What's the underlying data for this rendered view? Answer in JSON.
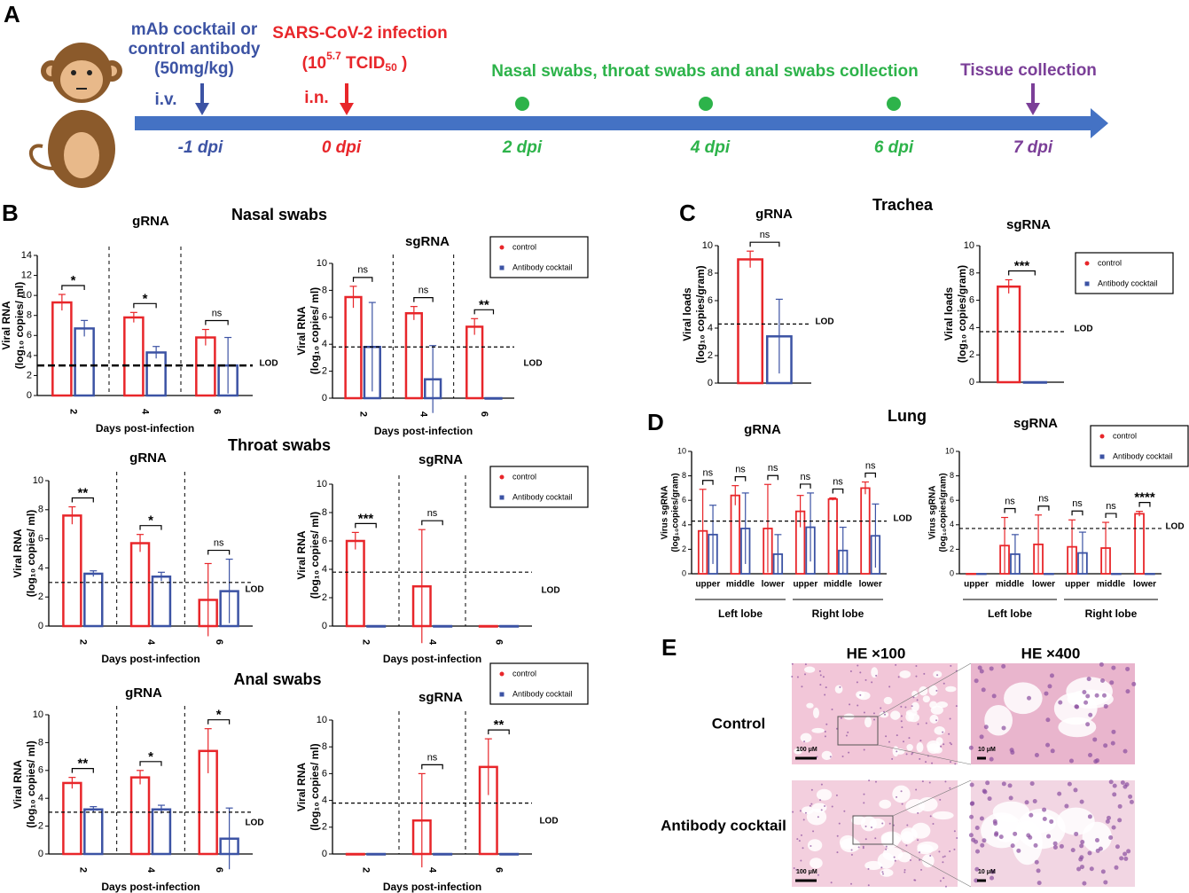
{
  "panel_labels": [
    "A",
    "B",
    "C",
    "D",
    "E"
  ],
  "timeline": {
    "treatment": [
      "mAb cocktail or",
      "control antibody",
      "(50mg/kg)"
    ],
    "route_iv": "i.v.",
    "infection": "SARS-CoV-2 infection",
    "dose": [
      "(10",
      "5.7",
      " TCID",
      "50",
      " )"
    ],
    "route_in": "i.n.",
    "sampling": "Nasal swabs, throat swabs and anal swabs collection",
    "tissue": "Tissue collection",
    "days": [
      "-1 dpi",
      "0 dpi",
      "2 dpi",
      "4 dpi",
      "6 dpi",
      "7 dpi"
    ]
  },
  "chart_data": [
    {
      "type": "bar",
      "group_title": "Nasal swabs",
      "title": "gRNA",
      "categories": [
        "2",
        "4",
        "6"
      ],
      "series": [
        {
          "name": "control",
          "color": "#e8262a",
          "values": [
            9.3,
            7.8,
            5.8
          ],
          "errors": [
            0.8,
            0.5,
            0.8
          ]
        },
        {
          "name": "Antibody cocktail",
          "color": "#3c53a4",
          "values": [
            6.7,
            4.3,
            3.0
          ],
          "errors": [
            0.8,
            0.6,
            2.8
          ]
        }
      ],
      "ylim": [
        0,
        14
      ],
      "yticks": [
        0,
        2,
        4,
        6,
        8,
        10,
        12,
        14
      ],
      "ylabel": [
        "Viral RNA",
        "(log₁₀ copies/ ml)"
      ],
      "xlabel": "Days post-infection",
      "significance": [
        "*",
        "*",
        "ns"
      ],
      "lod": 3.0,
      "lod_label": "LOD"
    },
    {
      "type": "bar",
      "title": "sgRNA",
      "categories": [
        "2",
        "4",
        "6"
      ],
      "series": [
        {
          "name": "control",
          "color": "#e8262a",
          "values": [
            7.5,
            6.3,
            5.3
          ],
          "errors": [
            0.8,
            0.5,
            0.6
          ]
        },
        {
          "name": "Antibody cocktail",
          "color": "#3c53a4",
          "values": [
            3.8,
            1.4,
            0
          ],
          "errors": [
            3.3,
            2.5,
            0
          ]
        }
      ],
      "ylim": [
        0,
        10
      ],
      "yticks": [
        0,
        2,
        4,
        6,
        8,
        10
      ],
      "ylabel": [
        "Viral RNA",
        "(log₁₀ copies/ ml)"
      ],
      "xlabel": "Days post-infection",
      "significance": [
        "ns",
        "ns",
        "**"
      ],
      "lod": 3.8,
      "lod_label": "LOD",
      "legend": true
    },
    {
      "type": "bar",
      "group_title": "Throat swabs",
      "title": "gRNA",
      "categories": [
        "2",
        "4",
        "6"
      ],
      "series": [
        {
          "name": "control",
          "color": "#e8262a",
          "values": [
            7.6,
            5.7,
            1.8
          ],
          "errors": [
            0.6,
            0.6,
            2.5
          ]
        },
        {
          "name": "Antibody cocktail",
          "color": "#3c53a4",
          "values": [
            3.6,
            3.4,
            2.4
          ],
          "errors": [
            0.2,
            0.3,
            2.2
          ]
        }
      ],
      "ylim": [
        0,
        10
      ],
      "yticks": [
        0,
        2,
        4,
        6,
        8,
        10
      ],
      "ylabel": [
        "Viral RNA",
        "(log₁₀ copies/ ml)"
      ],
      "xlabel": "Days post-infection",
      "significance": [
        "**",
        "*",
        "ns"
      ],
      "lod": 3.0,
      "lod_label": "LOD"
    },
    {
      "type": "bar",
      "title": "sgRNA",
      "categories": [
        "2",
        "4",
        "6"
      ],
      "series": [
        {
          "name": "control",
          "color": "#e8262a",
          "values": [
            6.0,
            2.8,
            0
          ],
          "errors": [
            0.6,
            4.0,
            0
          ]
        },
        {
          "name": "Antibody cocktail",
          "color": "#3c53a4",
          "values": [
            0,
            0,
            0
          ],
          "errors": [
            0,
            0,
            0
          ]
        }
      ],
      "ylim": [
        0,
        10
      ],
      "yticks": [
        0,
        2,
        4,
        6,
        8,
        10
      ],
      "ylabel": [
        "Viral RNA",
        "(log₁₀ copies/ ml)"
      ],
      "xlabel": "Days post-infection",
      "significance": [
        "***",
        "ns",
        null
      ],
      "lod": 3.8,
      "lod_label": "LOD",
      "legend": true
    },
    {
      "type": "bar",
      "group_title": "Anal swabs",
      "title": "gRNA",
      "categories": [
        "2",
        "4",
        "6"
      ],
      "series": [
        {
          "name": "control",
          "color": "#e8262a",
          "values": [
            5.1,
            5.5,
            7.4
          ],
          "errors": [
            0.4,
            0.5,
            1.6
          ]
        },
        {
          "name": "Antibody cocktail",
          "color": "#3c53a4",
          "values": [
            3.2,
            3.2,
            1.1
          ],
          "errors": [
            0.2,
            0.3,
            2.2
          ]
        }
      ],
      "ylim": [
        0,
        10
      ],
      "yticks": [
        0,
        2,
        4,
        6,
        8,
        10
      ],
      "ylabel": [
        "Viral RNA",
        "(log₁₀ copies/ ml)"
      ],
      "xlabel": "Days post-infection",
      "significance": [
        "**",
        "*",
        "*"
      ],
      "lod": 3.0,
      "lod_label": "LOD"
    },
    {
      "type": "bar",
      "title": "sgRNA",
      "categories": [
        "2",
        "4",
        "6"
      ],
      "series": [
        {
          "name": "control",
          "color": "#e8262a",
          "values": [
            0,
            2.5,
            6.5
          ],
          "errors": [
            0,
            3.5,
            2.1
          ]
        },
        {
          "name": "Antibody cocktail",
          "color": "#3c53a4",
          "values": [
            0,
            0,
            0
          ],
          "errors": [
            0,
            0,
            0
          ]
        }
      ],
      "ylim": [
        0,
        10
      ],
      "yticks": [
        0,
        2,
        4,
        6,
        8,
        10
      ],
      "ylabel": [
        "Viral RNA",
        "(log₁₀ copies/ ml)"
      ],
      "xlabel": "Days post-infection",
      "significance": [
        null,
        "ns",
        "**"
      ],
      "lod": 3.8,
      "lod_label": "LOD",
      "legend": true
    },
    {
      "type": "bar",
      "group_title": "Trachea",
      "title": "gRNA",
      "categories": [
        null
      ],
      "series": [
        {
          "name": "control",
          "color": "#e8262a",
          "values": [
            9.0
          ],
          "errors": [
            0.6
          ]
        },
        {
          "name": "Antibody cocktail",
          "color": "#3c53a4",
          "values": [
            3.4
          ],
          "errors": [
            2.7
          ]
        }
      ],
      "ylim": [
        0,
        10
      ],
      "yticks": [
        0,
        2,
        4,
        6,
        8,
        10
      ],
      "ylabel": [
        "Viral loads",
        "(log₁₀ copies/gram)"
      ],
      "significance": [
        "ns"
      ],
      "lod": 4.3,
      "lod_label": "LOD"
    },
    {
      "type": "bar",
      "title": "sgRNA",
      "categories": [
        null
      ],
      "series": [
        {
          "name": "control",
          "color": "#e8262a",
          "values": [
            7.0
          ],
          "errors": [
            0.5
          ]
        },
        {
          "name": "Antibody cocktail",
          "color": "#3c53a4",
          "values": [
            0
          ],
          "errors": [
            0
          ]
        }
      ],
      "ylim": [
        0,
        10
      ],
      "yticks": [
        0,
        2,
        4,
        6,
        8,
        10
      ],
      "ylabel": [
        "Viral loads",
        "(log₁₀ copies/gram)"
      ],
      "significance": [
        "***"
      ],
      "lod": 3.7,
      "lod_label": "LOD",
      "legend": true
    },
    {
      "type": "bar",
      "group_title": "Lung",
      "title": "gRNA",
      "categories": [
        "upper",
        "middle",
        "lower",
        "upper",
        "middle",
        "lower"
      ],
      "groups": [
        "Left lobe",
        "Right lobe"
      ],
      "series": [
        {
          "name": "control",
          "color": "#e8262a",
          "values": [
            3.5,
            6.4,
            3.7,
            5.1,
            6.1,
            7.0
          ],
          "errors": [
            3.4,
            0.8,
            3.6,
            1.3,
            0.1,
            0.5
          ]
        },
        {
          "name": "Antibody cocktail",
          "color": "#3c53a4",
          "values": [
            3.2,
            3.7,
            1.6,
            3.8,
            1.9,
            3.1
          ],
          "errors": [
            2.4,
            2.9,
            1.6,
            2.8,
            1.9,
            2.6
          ]
        }
      ],
      "ylim": [
        0,
        10
      ],
      "yticks": [
        0,
        2,
        4,
        6,
        8,
        10
      ],
      "ylabel": [
        "Virus sgRNA",
        "(log₁₀copies/gram)"
      ],
      "significance": [
        "ns",
        "ns",
        "ns",
        "ns",
        "ns",
        "ns"
      ],
      "lod": 4.3,
      "lod_label": "LOD"
    },
    {
      "type": "bar",
      "title": "sgRNA",
      "categories": [
        "upper",
        "middle",
        "lower",
        "upper",
        "middle",
        "lower"
      ],
      "groups": [
        "Left lobe",
        "Right lobe"
      ],
      "series": [
        {
          "name": "control",
          "color": "#e8262a",
          "values": [
            0,
            2.3,
            2.4,
            2.2,
            2.1,
            4.9
          ],
          "errors": [
            0,
            2.3,
            2.4,
            2.2,
            2.1,
            0.2
          ]
        },
        {
          "name": "Antibody cocktail",
          "color": "#3c53a4",
          "values": [
            0,
            1.6,
            0,
            1.7,
            0,
            0
          ],
          "errors": [
            0,
            1.6,
            0,
            1.7,
            0,
            0
          ]
        }
      ],
      "ylim": [
        0,
        10
      ],
      "yticks": [
        0,
        2,
        4,
        6,
        8,
        10
      ],
      "ylabel": [
        "Virus sgRNA",
        "(log₁₀copies/gram)"
      ],
      "significance": [
        null,
        "ns",
        "ns",
        "ns",
        "ns",
        "****"
      ],
      "lod": 3.7,
      "lod_label": "LOD",
      "legend": true
    }
  ],
  "histology": {
    "columns": [
      "HE  ×100",
      "HE  ×400"
    ],
    "rows": [
      "Control",
      "Antibody  cocktail"
    ],
    "scale_bars": [
      "100 μM",
      "10 μM",
      "100 μM",
      "10 μM"
    ]
  }
}
